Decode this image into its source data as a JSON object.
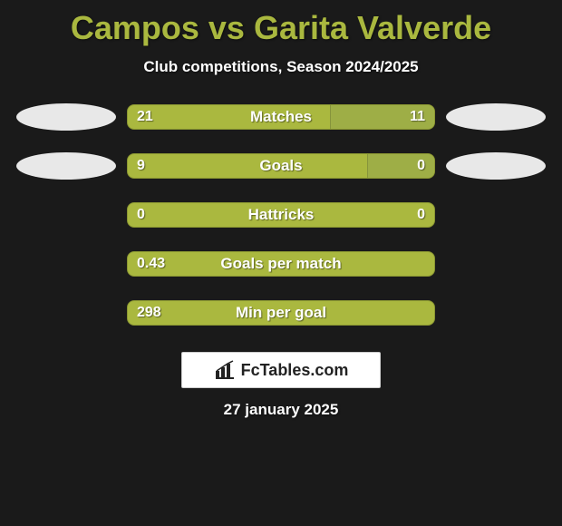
{
  "title": "Campos vs Garita Valverde",
  "subtitle": "Club competitions, Season 2024/2025",
  "date": "27 january 2025",
  "logo_text": "FcTables.com",
  "colors": {
    "background": "#1a1a1a",
    "accent": "#aab83f",
    "accent_alt": "#9eae46",
    "text_light": "#ffffff",
    "oval_bg": "#e8e8e8",
    "logo_box_bg": "#ffffff",
    "logo_box_border": "#cccccc",
    "bar_border": "#8a9632"
  },
  "typography": {
    "title_fontsize": 36,
    "title_weight": 900,
    "subtitle_fontsize": 17,
    "subtitle_weight": 700,
    "bar_label_fontsize": 17,
    "bar_value_fontsize": 16,
    "date_fontsize": 17,
    "logo_fontsize": 18
  },
  "layout": {
    "bar_track_width": 340,
    "bar_track_height": 28,
    "bar_border_radius": 8,
    "oval_width": 110,
    "oval_height": 30,
    "row_gap": 24,
    "logo_box_width": 220,
    "logo_box_height": 40
  },
  "chart": {
    "type": "comparative-bar",
    "rows": [
      {
        "label": "Matches",
        "left_value": "21",
        "right_value": "11",
        "right_fill_pct": 34,
        "show_ovals": true
      },
      {
        "label": "Goals",
        "left_value": "9",
        "right_value": "0",
        "right_fill_pct": 22,
        "show_ovals": true
      },
      {
        "label": "Hattricks",
        "left_value": "0",
        "right_value": "0",
        "right_fill_pct": 0,
        "show_ovals": false
      },
      {
        "label": "Goals per match",
        "left_value": "0.43",
        "right_value": "",
        "right_fill_pct": 0,
        "show_ovals": false
      },
      {
        "label": "Min per goal",
        "left_value": "298",
        "right_value": "",
        "right_fill_pct": 0,
        "show_ovals": false
      }
    ]
  }
}
